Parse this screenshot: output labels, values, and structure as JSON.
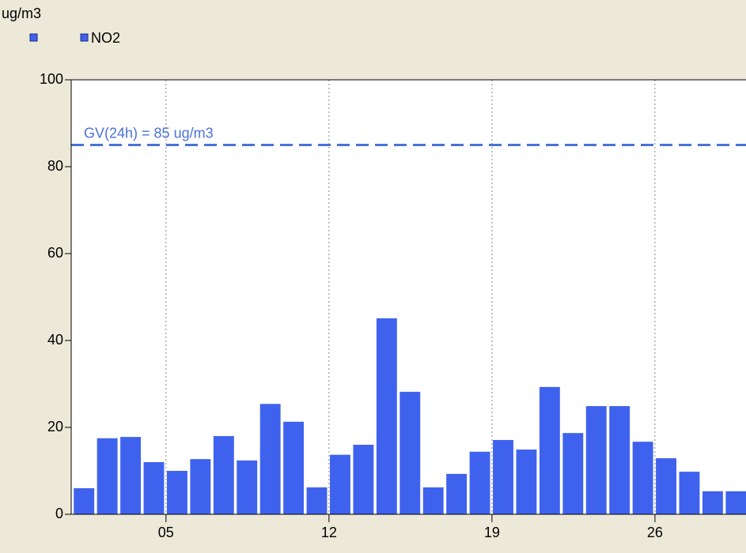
{
  "chart_data": {
    "type": "bar",
    "y_label": "ug/m3",
    "x": [
      1,
      2,
      3,
      4,
      5,
      6,
      7,
      8,
      9,
      10,
      11,
      12,
      13,
      14,
      15,
      16,
      17,
      18,
      19,
      20,
      21,
      22,
      23,
      24,
      25,
      26,
      27,
      28,
      29
    ],
    "series": [
      {
        "name": "NO2",
        "color": "#3f62ee",
        "values": [
          6,
          17.5,
          17.8,
          12,
          10,
          12.7,
          18,
          12.4,
          25.4,
          21.3,
          6.2,
          13.7,
          16,
          45.1,
          28.2,
          6.2,
          9.3,
          14.4,
          17.1,
          14.9,
          29.3,
          18.7,
          24.9,
          24.9,
          16.7,
          12.9,
          9.8,
          5.3,
          5.3
        ]
      }
    ],
    "xlim": [
      0.93,
      29.91
    ],
    "xticks": [
      {
        "value": 5,
        "label": "05"
      },
      12,
      19,
      26
    ],
    "ylim": [
      0,
      100
    ],
    "yticks": [
      0,
      20,
      40,
      60,
      80,
      100
    ],
    "grid": true,
    "threshold": {
      "value": 85,
      "label": "GV(24h) = 85 ug/m3",
      "color": "#4a72d8"
    }
  }
}
